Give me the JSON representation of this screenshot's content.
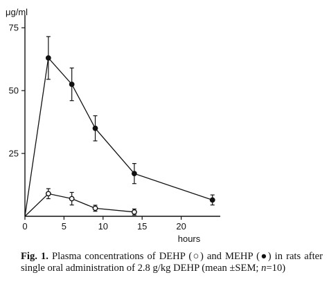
{
  "chart_data": {
    "type": "line",
    "ylabel": "μg/ml",
    "xlabel": "hours",
    "xlim": [
      0,
      25
    ],
    "ylim": [
      0,
      80
    ],
    "xticks": [
      0,
      5,
      10,
      15,
      20
    ],
    "yticks": [
      25,
      50,
      75
    ],
    "grid": false,
    "legend": "none",
    "series": [
      {
        "marker": "filled-circle",
        "x": [
          0,
          3,
          6,
          9,
          14,
          24
        ],
        "y": [
          0,
          63,
          52.5,
          35,
          17,
          6.5
        ],
        "err": [
          0,
          8.5,
          6.5,
          5,
          4,
          2
        ]
      },
      {
        "marker": "open-circle",
        "x": [
          0,
          3,
          6,
          9,
          14
        ],
        "y": [
          0,
          9,
          7,
          3.2,
          1.7
        ],
        "err": [
          0,
          2,
          2.5,
          1.2,
          1.2
        ]
      }
    ]
  },
  "caption": {
    "label": "Fig. 1.",
    "text_1": " Plasma concentrations of DEHP (",
    "symbol_open": "○",
    "text_2": ") and MEHP (",
    "symbol_filled": "●",
    "text_3": ") in rats after single oral administration of 2.8 g/kg DEHP (mean ±SEM; ",
    "n_italic": "n",
    "text_4": "=10)"
  }
}
